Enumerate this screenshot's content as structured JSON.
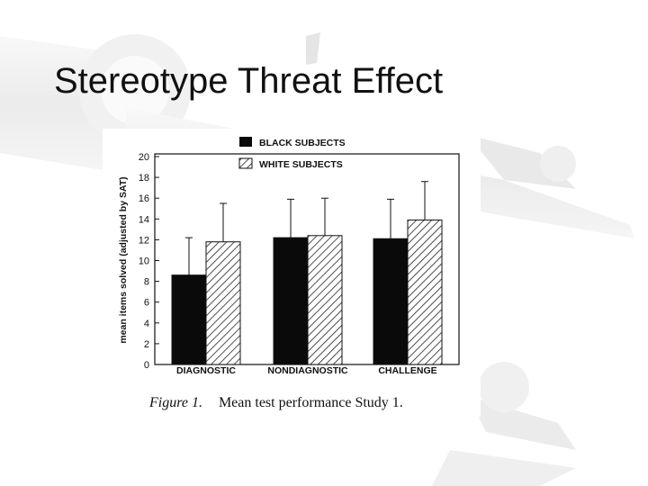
{
  "slide": {
    "title": "Stereotype Threat Effect"
  },
  "figure": {
    "caption_label": "Figure 1.",
    "caption_text": "Mean test performance Study 1."
  },
  "chart_data": {
    "type": "bar",
    "categories": [
      "DIAGNOSTIC",
      "NONDIAGNOSTIC",
      "CHALLENGE"
    ],
    "series": [
      {
        "name": "BLACK SUBJECTS",
        "values": [
          8.6,
          12.2,
          12.1
        ],
        "errors": [
          3.6,
          3.7,
          3.8
        ],
        "fill": "solid"
      },
      {
        "name": "WHITE SUBJECTS",
        "values": [
          11.8,
          12.4,
          13.9
        ],
        "errors": [
          3.7,
          3.6,
          3.7
        ],
        "fill": "hatched"
      }
    ],
    "ylabel": "mean items solved (adjusted by SAT)",
    "ylim": [
      0,
      20
    ],
    "yticks": [
      0,
      2,
      4,
      6,
      8,
      10,
      12,
      14,
      16,
      18,
      20
    ],
    "legend_position": "top-right",
    "grid": false
  },
  "colors": {
    "bar_black": "#0a0a0a",
    "hatch": "#222222",
    "axis": "#111111"
  }
}
